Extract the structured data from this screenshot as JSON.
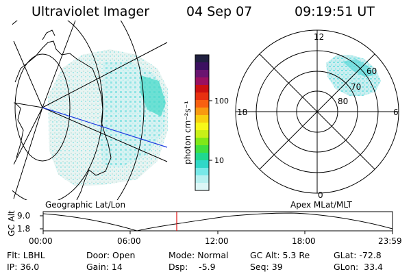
{
  "header": {
    "title": "Ultraviolet Imager",
    "date": "04 Sep 07",
    "time": "09:19:51 UT"
  },
  "colorbar": {
    "unit": "photon cm⁻²s⁻¹",
    "ticks": [
      "100",
      "10"
    ],
    "colors": [
      "#202040",
      "#3c1060",
      "#6a1470",
      "#9a1060",
      "#cc1010",
      "#e83010",
      "#f86010",
      "#f89a10",
      "#f8d010",
      "#f8f818",
      "#c8f018",
      "#80e818",
      "#40e040",
      "#20d890",
      "#30d8c8",
      "#78e8e8",
      "#b8f0f0",
      "#dcf6f6"
    ]
  },
  "map": {
    "caption": "Geographic Lat/Lon"
  },
  "polar": {
    "caption": "Apex MLat/MLT",
    "mlt_labels": [
      "12",
      "18",
      "6",
      "0"
    ],
    "mlat_labels": [
      "60",
      "70",
      "80"
    ]
  },
  "orbit": {
    "ylabel": "GC Alt",
    "yticks": [
      "9.0",
      "1.8"
    ],
    "xticks": [
      "00:00",
      "06:00",
      "12:00",
      "18:00",
      "23:59"
    ],
    "marker_time": "09:19:51"
  },
  "info": {
    "flt": "Flt: LBHL",
    "ip": "IP: 36.0",
    "door": "Door: Open",
    "gain": "Gain: 14",
    "mode": "Mode: Normal",
    "dsp": "Dsp:    -5.9",
    "gcalt": "GC Alt: 5.3 Re",
    "seq": "Seq: 39",
    "glat": "GLat: -72.8",
    "glon": "GLon:  33.4"
  }
}
